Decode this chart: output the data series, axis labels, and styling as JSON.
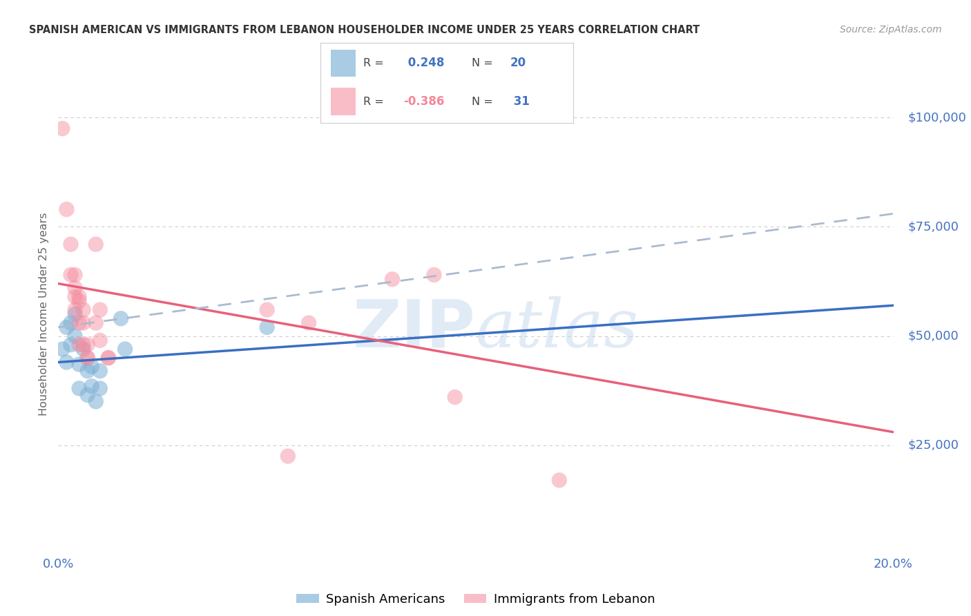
{
  "title": "SPANISH AMERICAN VS IMMIGRANTS FROM LEBANON HOUSEHOLDER INCOME UNDER 25 YEARS CORRELATION CHART",
  "source": "Source: ZipAtlas.com",
  "ylabel": "Householder Income Under 25 years",
  "watermark": "ZIPatlas",
  "xmin": 0.0,
  "xmax": 0.2,
  "ymin": 0,
  "ymax": 110000,
  "yticks": [
    0,
    25000,
    50000,
    75000,
    100000
  ],
  "ytick_labels": [
    "",
    "$25,000",
    "$50,000",
    "$75,000",
    "$100,000"
  ],
  "xticks": [
    0.0,
    0.05,
    0.1,
    0.15,
    0.2
  ],
  "xtick_labels": [
    "0.0%",
    "",
    "",
    "",
    "20.0%"
  ],
  "r_blue": 0.248,
  "n_blue": 20,
  "r_pink": -0.386,
  "n_pink": 31,
  "blue_color": "#7BAFD4",
  "pink_color": "#F4879A",
  "blue_scatter": [
    [
      0.001,
      47000
    ],
    [
      0.002,
      44000
    ],
    [
      0.002,
      52000
    ],
    [
      0.003,
      48000
    ],
    [
      0.003,
      53000
    ],
    [
      0.004,
      55000
    ],
    [
      0.004,
      50000
    ],
    [
      0.005,
      43500
    ],
    [
      0.005,
      38000
    ],
    [
      0.006,
      47000
    ],
    [
      0.007,
      36500
    ],
    [
      0.007,
      42000
    ],
    [
      0.008,
      43000
    ],
    [
      0.008,
      38500
    ],
    [
      0.009,
      35000
    ],
    [
      0.01,
      42000
    ],
    [
      0.01,
      38000
    ],
    [
      0.015,
      54000
    ],
    [
      0.016,
      47000
    ],
    [
      0.05,
      52000
    ]
  ],
  "pink_scatter": [
    [
      0.001,
      97500
    ],
    [
      0.002,
      79000
    ],
    [
      0.003,
      71000
    ],
    [
      0.003,
      64000
    ],
    [
      0.004,
      59000
    ],
    [
      0.004,
      61000
    ],
    [
      0.004,
      56000
    ],
    [
      0.004,
      64000
    ],
    [
      0.005,
      58000
    ],
    [
      0.005,
      53000
    ],
    [
      0.005,
      48000
    ],
    [
      0.005,
      59000
    ],
    [
      0.006,
      56000
    ],
    [
      0.006,
      53000
    ],
    [
      0.006,
      48000
    ],
    [
      0.007,
      48000
    ],
    [
      0.007,
      45000
    ],
    [
      0.007,
      45000
    ],
    [
      0.009,
      71000
    ],
    [
      0.009,
      53000
    ],
    [
      0.01,
      49000
    ],
    [
      0.01,
      56000
    ],
    [
      0.012,
      45000
    ],
    [
      0.012,
      45000
    ],
    [
      0.05,
      56000
    ],
    [
      0.06,
      53000
    ],
    [
      0.08,
      63000
    ],
    [
      0.09,
      64000
    ],
    [
      0.055,
      22500
    ],
    [
      0.12,
      17000
    ],
    [
      0.095,
      36000
    ]
  ],
  "blue_line_x": [
    0.0,
    0.2
  ],
  "blue_line_y": [
    44000,
    57000
  ],
  "pink_line_x": [
    0.0,
    0.2
  ],
  "pink_line_y": [
    62000,
    28000
  ],
  "dashed_line_x": [
    0.0,
    0.2
  ],
  "dashed_line_y": [
    52000,
    78000
  ],
  "background_color": "#FFFFFF",
  "grid_color": "#CCCCCC",
  "tick_color": "#4472C4",
  "title_color": "#333333",
  "ylabel_color": "#666666"
}
